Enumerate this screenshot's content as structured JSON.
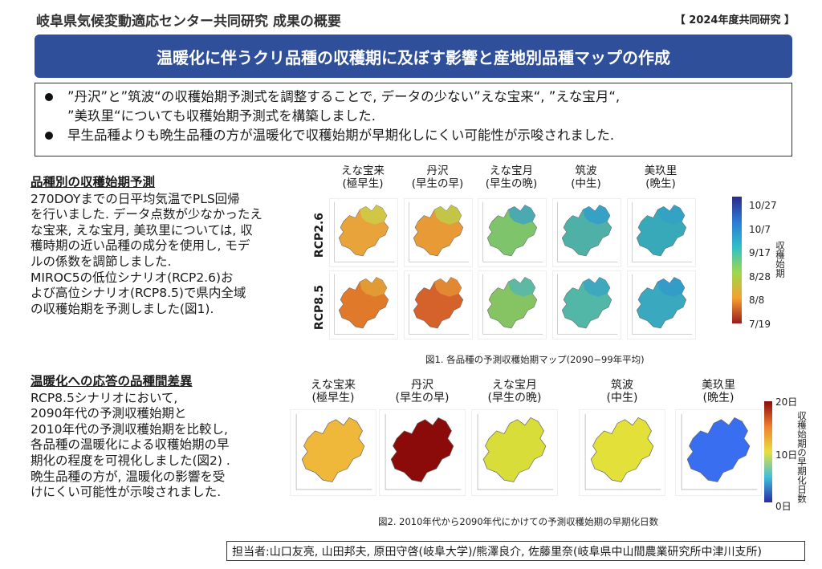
{
  "header": {
    "title": "岐阜県気候変動適応センター共同研究 成果の概要",
    "year_tag": "【 2024年度共同研究 】"
  },
  "banner": {
    "title": "温暖化に伴うクリ品種の収穫期に及ぼす影響と産地別品種マップの作成"
  },
  "summary": {
    "bullets": [
      "”丹沢”と”筑波“の収穫始期予測式を調整することで, データの少ない”えな宝来“, ”えな宝月“,\n”美玖里“についても収穫始期予測式を構築しました.",
      "早生品種よりも晩生品種の方が温暖化で収穫始期が早期化しにくい可能性が示唆されました."
    ]
  },
  "section1": {
    "title": "品種別の収穫始期予測",
    "body": "270DOYまでの日平均気温でPLS回帰\nを行いました. データ点数が少なかったえ\nな宝来, えな宝月, 美玖里については, 収\n穫時期の近い品種の成分を使用し, モデ\nルの係数を調節しました.\nMIROC5の低位シナリオ(RCP2.6)お\nよび高位シナリオ(RCP8.5)で県内全域\nの収穫始期を予測しました(図1)."
  },
  "section2": {
    "title": "温暖化への応答の品種間差異",
    "body": "RCP8.5シナリオにおいて,\n2090年代の予測収穫始期と\n2010年代の予測収穫始期を比較し,\n各品種の温暖化による収穫始期の早\n期化の程度を可視化しました(図2) .\n晩生品種の方が, 温暖化の影響を受\nけにくい可能性が示唆されました."
  },
  "fig1": {
    "varieties": [
      "えな宝来\n(極早生)",
      "丹沢\n(早生の早)",
      "えな宝月\n(早生の晩)",
      "筑波\n(中生)",
      "美玖里\n(晩生)"
    ],
    "rows": [
      "RCP2.6",
      "RCP8.5"
    ],
    "colorbar_labels": [
      "10/27",
      "10/7",
      "9/17",
      "8/28",
      "8/8",
      "7/19"
    ],
    "colorbar_title": "収穫始期",
    "map_colors": [
      [
        "#e8a33a",
        "#e89a36",
        "#7dc46a",
        "#4fb0a8",
        "#38a9b8"
      ],
      [
        "#e07a2a",
        "#d4622a",
        "#86c463",
        "#52b7a6",
        "#3aa8bf"
      ]
    ],
    "map_accents": [
      [
        "#c9d24a",
        "#b8d24e",
        "#3aa0c9",
        "#2f9ccf",
        "#32a0c8"
      ],
      [
        "#e3a53a",
        "#e89636",
        "#4fb6b6",
        "#38a3c6",
        "#3398cc"
      ]
    ],
    "caption": "図1. 各品種の予測収穫始期マップ(2090−99年平均)"
  },
  "fig2": {
    "varieties": [
      "えな宝来\n(極早生)",
      "丹沢\n(早生の早)",
      "えな宝月\n(早生の晩)",
      "筑波\n(中生)",
      "美玖里\n(晩生)"
    ],
    "map_colors": [
      "#f0b83a",
      "#8b0a0a",
      "#d8dd3a",
      "#e3e03a",
      "#3a6ef0"
    ],
    "colorbar_labels": [
      "20日",
      "10日",
      "0日"
    ],
    "colorbar_title": "収穫始期の早期化日数",
    "caption": "図2. 2010年代から2090年代にかけての予測収穫始期の早期化日数"
  },
  "footer": {
    "text": "担当者:山口友亮, 山田邦夫, 原田守啓(岐阜大学)/熊澤良介, 佐藤里奈(岐阜県中山間農業研究所中津川支所)"
  }
}
